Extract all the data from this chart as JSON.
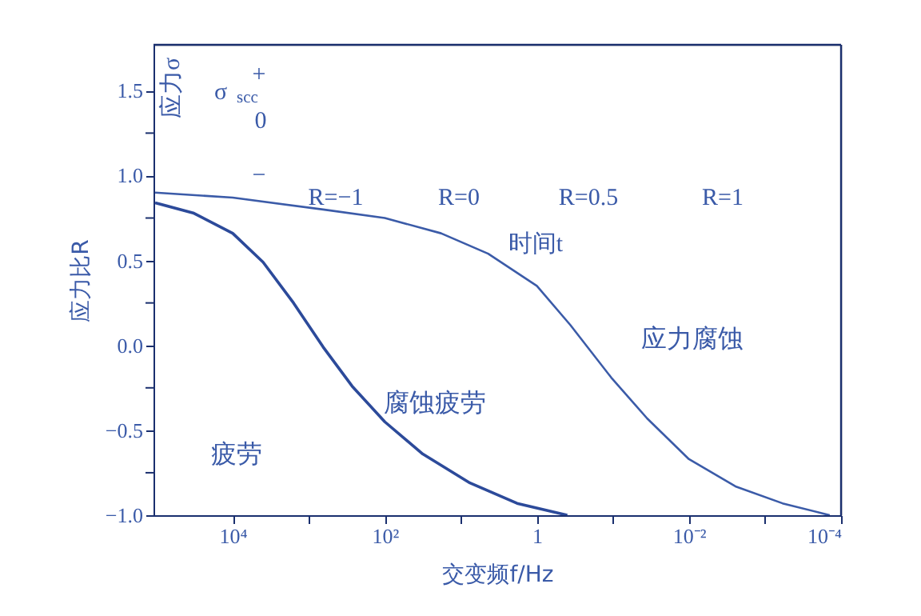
{
  "chart_data": {
    "type": "line",
    "xlabel": "交变频f/Hz",
    "ylabel": "应力比R",
    "xlim": [
      110000,
      0.0001
    ],
    "log": "x",
    "xticks": [
      {
        "value": 10000,
        "label": "10⁴"
      },
      {
        "value": 1000,
        "label": null
      },
      {
        "value": 100,
        "label": "10²"
      },
      {
        "value": 10,
        "label": null
      },
      {
        "value": 1,
        "label": "1"
      },
      {
        "value": 0.1,
        "label": null
      },
      {
        "value": 0.01,
        "label": "10⁻²"
      },
      {
        "value": 0.001,
        "label": null
      },
      {
        "value": 0.0001,
        "label": "10⁻⁴"
      }
    ],
    "ylim": [
      -1.0,
      1.77
    ],
    "yticks": [
      {
        "value": -1.0,
        "label": "−1.0"
      },
      {
        "value": -0.75,
        "label": null
      },
      {
        "value": -0.5,
        "label": "−0.5"
      },
      {
        "value": -0.25,
        "label": null
      },
      {
        "value": 0,
        "label": "0.0"
      },
      {
        "value": 0.25,
        "label": null
      },
      {
        "value": 0.5,
        "label": "0.5"
      },
      {
        "value": 0.75,
        "label": null
      },
      {
        "value": 1.0,
        "label": "1.0"
      },
      {
        "value": 1.25,
        "label": null
      },
      {
        "value": 1.5,
        "label": "1.5"
      }
    ],
    "grid": false,
    "marker": "none",
    "line_style": "solid",
    "series": [
      {
        "color": "#3b5ba8",
        "x": [
          104700,
          10000,
          646,
          100,
          18.2,
          4.37,
          1,
          0.363,
          0.105,
          0.0355,
          0.01,
          0.00245,
          0.000589,
          0.000141
        ],
        "values": [
          0.9,
          0.87,
          0.8,
          0.75,
          0.66,
          0.54,
          0.35,
          0.12,
          -0.19,
          -0.43,
          -0.67,
          -0.83,
          -0.93,
          -1.0
        ]
      },
      {
        "color": "#2c4a9a",
        "x": [
          104700,
          33100,
          10000,
          3981,
          1585,
          646,
          269,
          100,
          31.6,
          7.59,
          1.82,
          0.398
        ],
        "values": [
          0.84,
          0.78,
          0.66,
          0.49,
          0.25,
          -0.01,
          -0.24,
          -0.45,
          -0.64,
          -0.81,
          -0.93,
          -1.0
        ]
      }
    ],
    "annotations": [
      "应力σ",
      "σ$_{scc}$",
      "+",
      "0",
      "−",
      "R=−1",
      "R=0",
      "R=0.5",
      "R=1",
      "时间t",
      "应力腐蚀",
      "腐蚀疲劳",
      "疲劳"
    ]
  }
}
